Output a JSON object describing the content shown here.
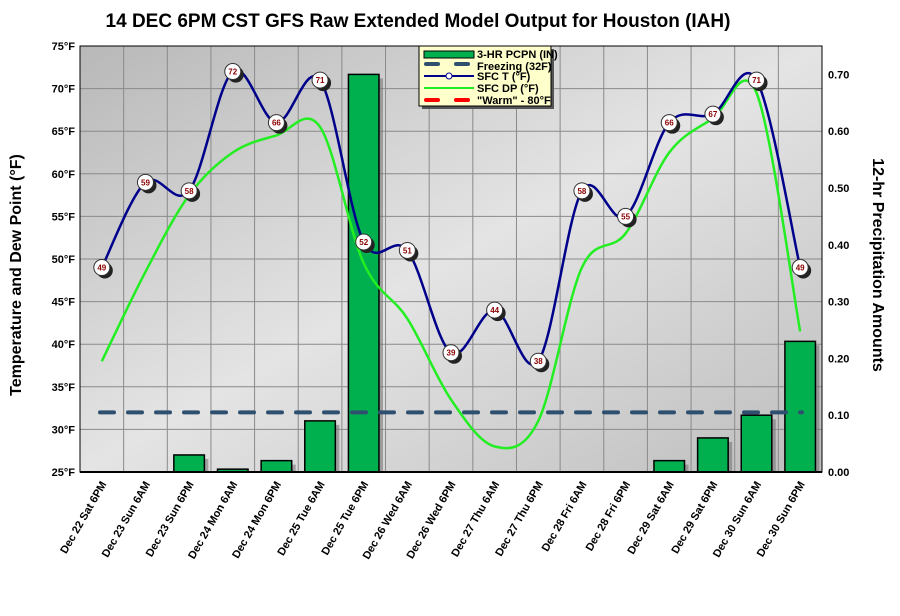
{
  "chart_data": {
    "type": "line",
    "title": "14 DEC 6PM CST GFS Raw Extended Model Output for Houston (IAH)",
    "ylabel": "Temperature and Dew Point (°F)",
    "y2label": "12-hr Precipitation Amounts",
    "ylim": [
      25,
      75
    ],
    "y2lim": [
      0,
      0.75
    ],
    "yticks": [
      "25°F",
      "30°F",
      "35°F",
      "40°F",
      "45°F",
      "50°F",
      "55°F",
      "60°F",
      "65°F",
      "70°F",
      "75°F"
    ],
    "y2ticks": [
      "0.00",
      "0.10",
      "0.20",
      "0.30",
      "0.40",
      "0.50",
      "0.60",
      "0.70"
    ],
    "grid": true,
    "legend_position": "top-center",
    "categories": [
      "Dec 22 Sat 6PM",
      "Dec 23 Sun 6AM",
      "Dec 23 Sun 6PM",
      "Dec 24 Mon 6AM",
      "Dec 24 Mon 6PM",
      "Dec 25 Tue 6AM",
      "Dec 25 Tue 6PM",
      "Dec 26 Wed 6AM",
      "Dec 26 Wed 6PM",
      "Dec 27 Thu 6AM",
      "Dec 27 Thu 6PM",
      "Dec 28 Fri 6AM",
      "Dec 28 Fri 6PM",
      "Dec 29 Sat 6AM",
      "Dec 29 Sat 6PM",
      "Dec 30 Sun 6AM",
      "Dec 30 Sun 6PM"
    ],
    "series": [
      {
        "name": "3-HR PCPN (IN)",
        "type": "bar",
        "axis": "right",
        "color": "#00b04f",
        "values": [
          0,
          0,
          0.03,
          0.005,
          0.02,
          0.09,
          0.7,
          0,
          0,
          0,
          0,
          0,
          0,
          0.02,
          0.06,
          0.1,
          0.23
        ]
      },
      {
        "name": "Freezing (32F)",
        "type": "hline",
        "value": 32,
        "color": "#2f4f6f"
      },
      {
        "name": "SFC T (°F)",
        "type": "line",
        "color": "#00008b",
        "values": [
          49,
          59,
          58,
          72,
          66,
          71,
          52,
          51,
          39,
          44,
          38,
          58,
          55,
          66,
          67,
          71,
          49
        ]
      },
      {
        "name": "SFC DP (°F)",
        "type": "line",
        "color": "#22ee22",
        "values": [
          38,
          48.5,
          57.5,
          62.5,
          64.5,
          65.5,
          49.5,
          43,
          33.5,
          28,
          31,
          49,
          53,
          62.5,
          66.5,
          69.5,
          41.5
        ]
      },
      {
        "name": "\"Warm\" - 80°F",
        "type": "hline",
        "value": 80,
        "color": "#ff0000"
      }
    ]
  }
}
